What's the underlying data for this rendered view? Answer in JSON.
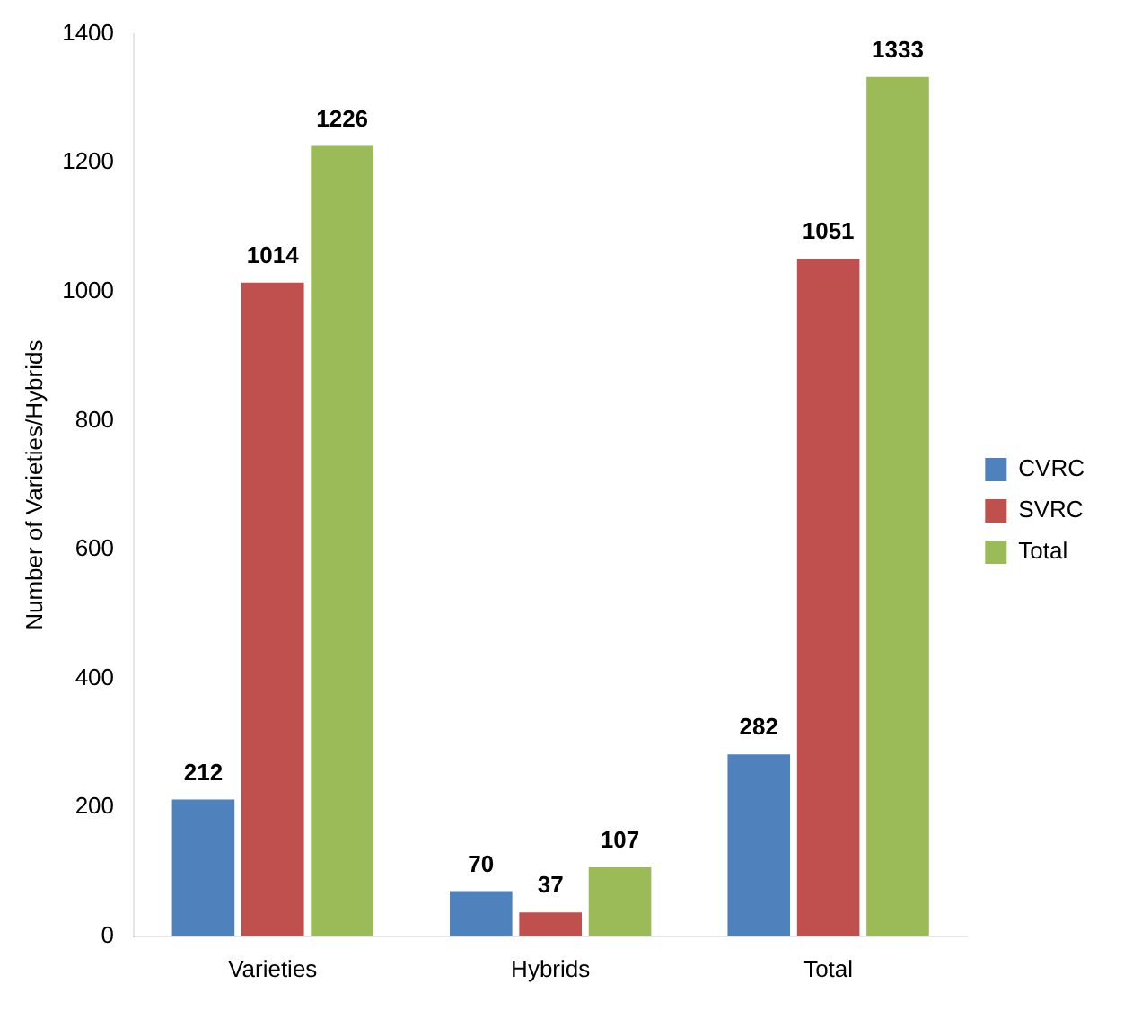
{
  "chart_data": {
    "type": "bar",
    "ylabel": "Number of Varieties/Hybrids",
    "categories": [
      "Varieties",
      "Hybrids",
      "Total"
    ],
    "series": [
      {
        "name": "CVRC",
        "color": "#4f81bd",
        "values": [
          212,
          70,
          282
        ]
      },
      {
        "name": "SVRC",
        "color": "#c0504d",
        "values": [
          1014,
          37,
          1051
        ]
      },
      {
        "name": "Total",
        "color": "#9bbb59",
        "values": [
          1226,
          107,
          1333
        ]
      }
    ],
    "ylim": [
      0,
      1400
    ],
    "yticks": [
      0,
      200,
      400,
      600,
      800,
      1000,
      1200,
      1400
    ],
    "grid": false,
    "legend": "right",
    "data_labels": true
  }
}
